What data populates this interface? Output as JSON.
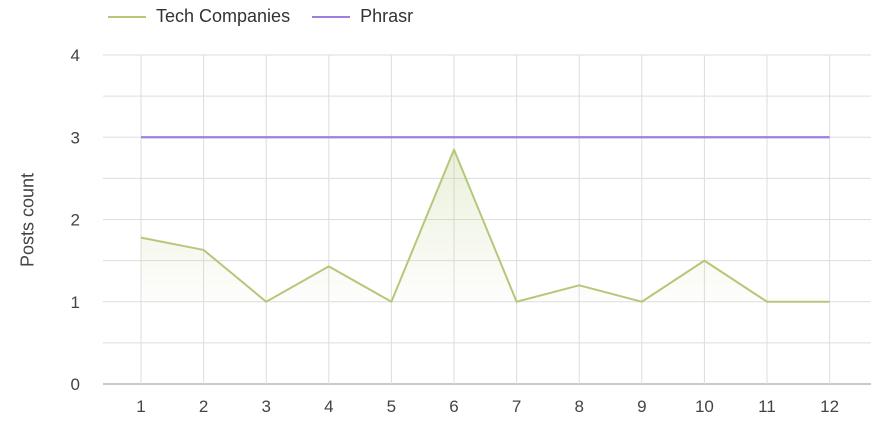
{
  "chart_data": {
    "type": "line",
    "ylabel": "Posts count",
    "xlabel": "",
    "x": [
      "1",
      "2",
      "3",
      "4",
      "5",
      "6",
      "7",
      "8",
      "9",
      "10",
      "11",
      "12"
    ],
    "ylim": [
      0,
      4
    ],
    "yticks": [
      "0",
      "1",
      "2",
      "3",
      "4"
    ],
    "grid": true,
    "legend_position": "top-left",
    "series": [
      {
        "name": "Tech Companies",
        "color": "#b5c87a",
        "fill": true,
        "values": [
          1.78,
          1.63,
          1.0,
          1.43,
          1.0,
          2.85,
          1.0,
          1.2,
          1.0,
          1.5,
          1.0,
          1.0
        ]
      },
      {
        "name": "Phrasr",
        "color": "#9d7fe0",
        "fill": false,
        "values": [
          3,
          3,
          3,
          3,
          3,
          3,
          3,
          3,
          3,
          3,
          3,
          3
        ]
      }
    ]
  }
}
